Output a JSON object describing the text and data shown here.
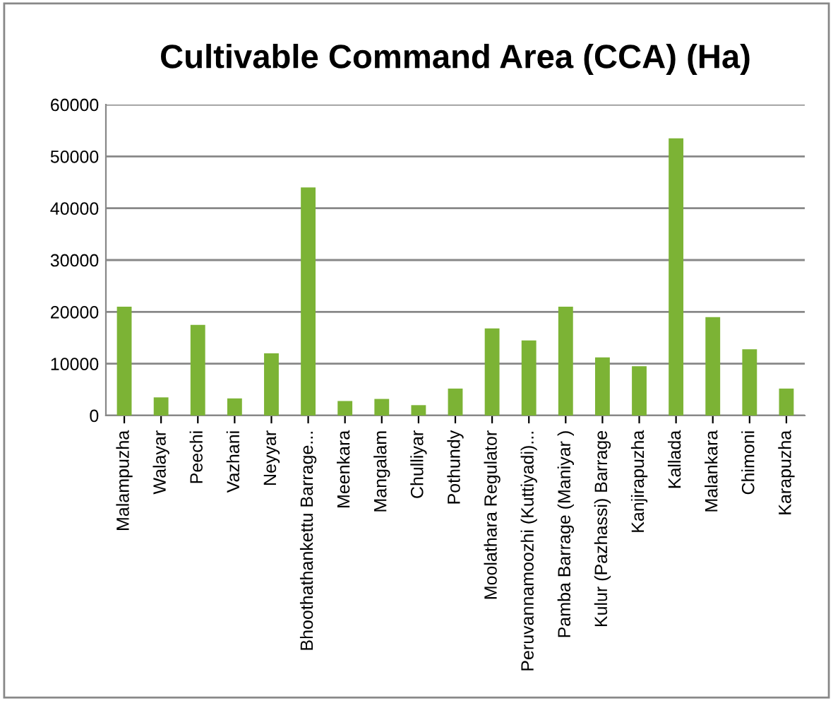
{
  "chart_data": {
    "type": "bar",
    "title": "Cultivable Command Area (CCA) (Ha)",
    "categories": [
      "Malampuzha",
      "Walayar",
      "Peechi",
      "Vazhani",
      "Neyyar",
      "Bhoothathankettu Barrage...",
      "Meenkara",
      "Mangalam",
      "Chulliyar",
      "Pothundy",
      "Moolathara Regulator",
      "Peruvannamoozhi (Kuttiyadi)...",
      "Pamba Barrage (Maniyar )",
      "Kulur (Pazhassi) Barrage",
      "Kanjirapuzha",
      "Kallada",
      "Malankara",
      "Chimoni",
      "Karapuzha"
    ],
    "values": [
      21000,
      3500,
      17500,
      3300,
      12000,
      44000,
      2800,
      3200,
      2000,
      5200,
      16800,
      14500,
      21000,
      11200,
      9500,
      53500,
      19000,
      12800,
      5200
    ],
    "color": "#7cb335",
    "ylim": [
      0,
      60000
    ],
    "yticks": [
      0,
      10000,
      20000,
      30000,
      40000,
      50000,
      60000
    ],
    "grid": "y",
    "legend": false
  }
}
